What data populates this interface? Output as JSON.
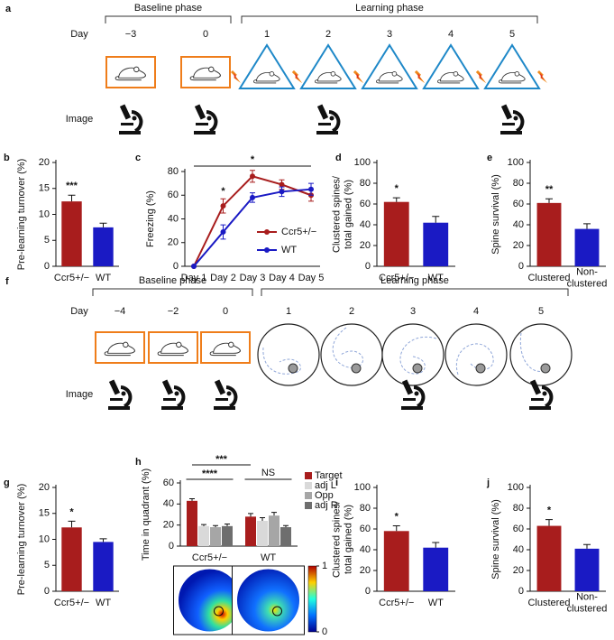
{
  "timelines": [
    {
      "panel": "a",
      "day_label": "Day",
      "image_label": "Image",
      "phases": [
        {
          "name": "Baseline phase",
          "days": [
            "−3",
            "0"
          ]
        },
        {
          "name": "Learning phase",
          "days": [
            "1",
            "2",
            "3",
            "4",
            "5"
          ]
        }
      ]
    },
    {
      "panel": "f",
      "day_label": "Day",
      "image_label": "Image",
      "phases": [
        {
          "name": "Baseline phase",
          "days": [
            "−4",
            "−2",
            "0"
          ]
        },
        {
          "name": "Learning phase",
          "days": [
            "1",
            "2",
            "3",
            "4",
            "5"
          ]
        }
      ]
    }
  ],
  "chart_data": [
    {
      "panel": "b",
      "type": "bar",
      "ylabel": "Pre-learning turnover (%)",
      "categories": [
        "Ccr5+/−",
        "WT"
      ],
      "values": [
        12.5,
        7.5
      ],
      "errors": [
        1.2,
        0.8
      ],
      "colors": [
        "#a81d1d",
        "#1a1ac4"
      ],
      "ylim": [
        0,
        20
      ],
      "yticks": [
        0,
        5,
        10,
        15,
        20
      ],
      "annotations": [
        "***"
      ]
    },
    {
      "panel": "c",
      "type": "line",
      "ylabel": "Freezing (%)",
      "categories": [
        "Day 1",
        "Day 2",
        "Day 3",
        "Day 4",
        "Day 5"
      ],
      "series": [
        {
          "name": "Ccr5+/−",
          "color": "#a81d1d",
          "values": [
            0,
            51,
            76,
            69,
            60
          ],
          "errors": [
            0,
            6,
            5,
            4,
            5
          ]
        },
        {
          "name": "WT",
          "color": "#1a1ac4",
          "values": [
            0,
            29,
            58,
            63,
            65
          ],
          "errors": [
            0,
            6,
            4,
            4,
            5
          ]
        }
      ],
      "ylim": [
        0,
        80
      ],
      "yticks": [
        0,
        20,
        40,
        60,
        80
      ],
      "annotations": [
        "*",
        "*"
      ]
    },
    {
      "panel": "d",
      "type": "bar",
      "ylabel": "Clustered spines/\ntotal gained (%)",
      "categories": [
        "Ccr5+/−",
        "WT"
      ],
      "values": [
        62,
        42
      ],
      "errors": [
        4,
        6
      ],
      "colors": [
        "#a81d1d",
        "#1a1ac4"
      ],
      "ylim": [
        0,
        100
      ],
      "yticks": [
        0,
        20,
        40,
        60,
        80,
        100
      ],
      "annotations": [
        "*"
      ]
    },
    {
      "panel": "e",
      "type": "bar",
      "ylabel": "Spine survival (%)",
      "categories": [
        "Clustered",
        "Non-\nclustered"
      ],
      "values": [
        61,
        36
      ],
      "errors": [
        4,
        5
      ],
      "colors": [
        "#a81d1d",
        "#1a1ac4"
      ],
      "ylim": [
        0,
        100
      ],
      "yticks": [
        0,
        20,
        40,
        60,
        80,
        100
      ],
      "annotations": [
        "**"
      ]
    },
    {
      "panel": "g",
      "type": "bar",
      "ylabel": "Pre-learning turnover (%)",
      "categories": [
        "Ccr5+/−",
        "WT"
      ],
      "values": [
        12.3,
        9.5
      ],
      "errors": [
        1.2,
        0.6
      ],
      "colors": [
        "#a81d1d",
        "#1a1ac4"
      ],
      "ylim": [
        0,
        20
      ],
      "yticks": [
        0,
        5,
        10,
        15,
        20
      ],
      "annotations": [
        "*"
      ]
    },
    {
      "panel": "h",
      "type": "grouped_bar",
      "ylabel": "Time in quadrant (%)",
      "categories": [
        "Ccr5+/−",
        "WT"
      ],
      "series": [
        {
          "name": "Target",
          "color": "#a81d1d",
          "values": [
            43,
            28
          ],
          "errors": [
            2,
            3
          ]
        },
        {
          "name": "adj L",
          "color": "#d9d9d9",
          "values": [
            19,
            24
          ],
          "errors": [
            1.5,
            3
          ]
        },
        {
          "name": "Opp",
          "color": "#a6a6a6",
          "values": [
            18,
            29
          ],
          "errors": [
            1.5,
            3
          ]
        },
        {
          "name": "adj R",
          "color": "#6e6e6e",
          "values": [
            19,
            18
          ],
          "errors": [
            2,
            1.5
          ]
        }
      ],
      "ylim": [
        0,
        60
      ],
      "yticks": [
        0,
        20,
        40,
        60
      ],
      "annotations": [
        "***",
        "****",
        "NS"
      ],
      "colorbar_ticks": [
        0,
        1
      ]
    },
    {
      "panel": "i",
      "type": "bar",
      "ylabel": "Clustered spines/\ntotal gained (%)",
      "categories": [
        "Ccr5+/−",
        "WT"
      ],
      "values": [
        58,
        42
      ],
      "errors": [
        5,
        5
      ],
      "colors": [
        "#a81d1d",
        "#1a1ac4"
      ],
      "ylim": [
        0,
        100
      ],
      "yticks": [
        0,
        20,
        40,
        60,
        80,
        100
      ],
      "annotations": [
        "*"
      ]
    },
    {
      "panel": "j",
      "type": "bar",
      "ylabel": "Spine survival (%)",
      "categories": [
        "Clustered",
        "Non-\nclustered"
      ],
      "values": [
        63,
        41
      ],
      "errors": [
        6,
        4
      ],
      "colors": [
        "#a81d1d",
        "#1a1ac4"
      ],
      "ylim": [
        0,
        100
      ],
      "yticks": [
        0,
        20,
        40,
        60,
        80,
        100
      ],
      "annotations": [
        "*"
      ]
    }
  ]
}
